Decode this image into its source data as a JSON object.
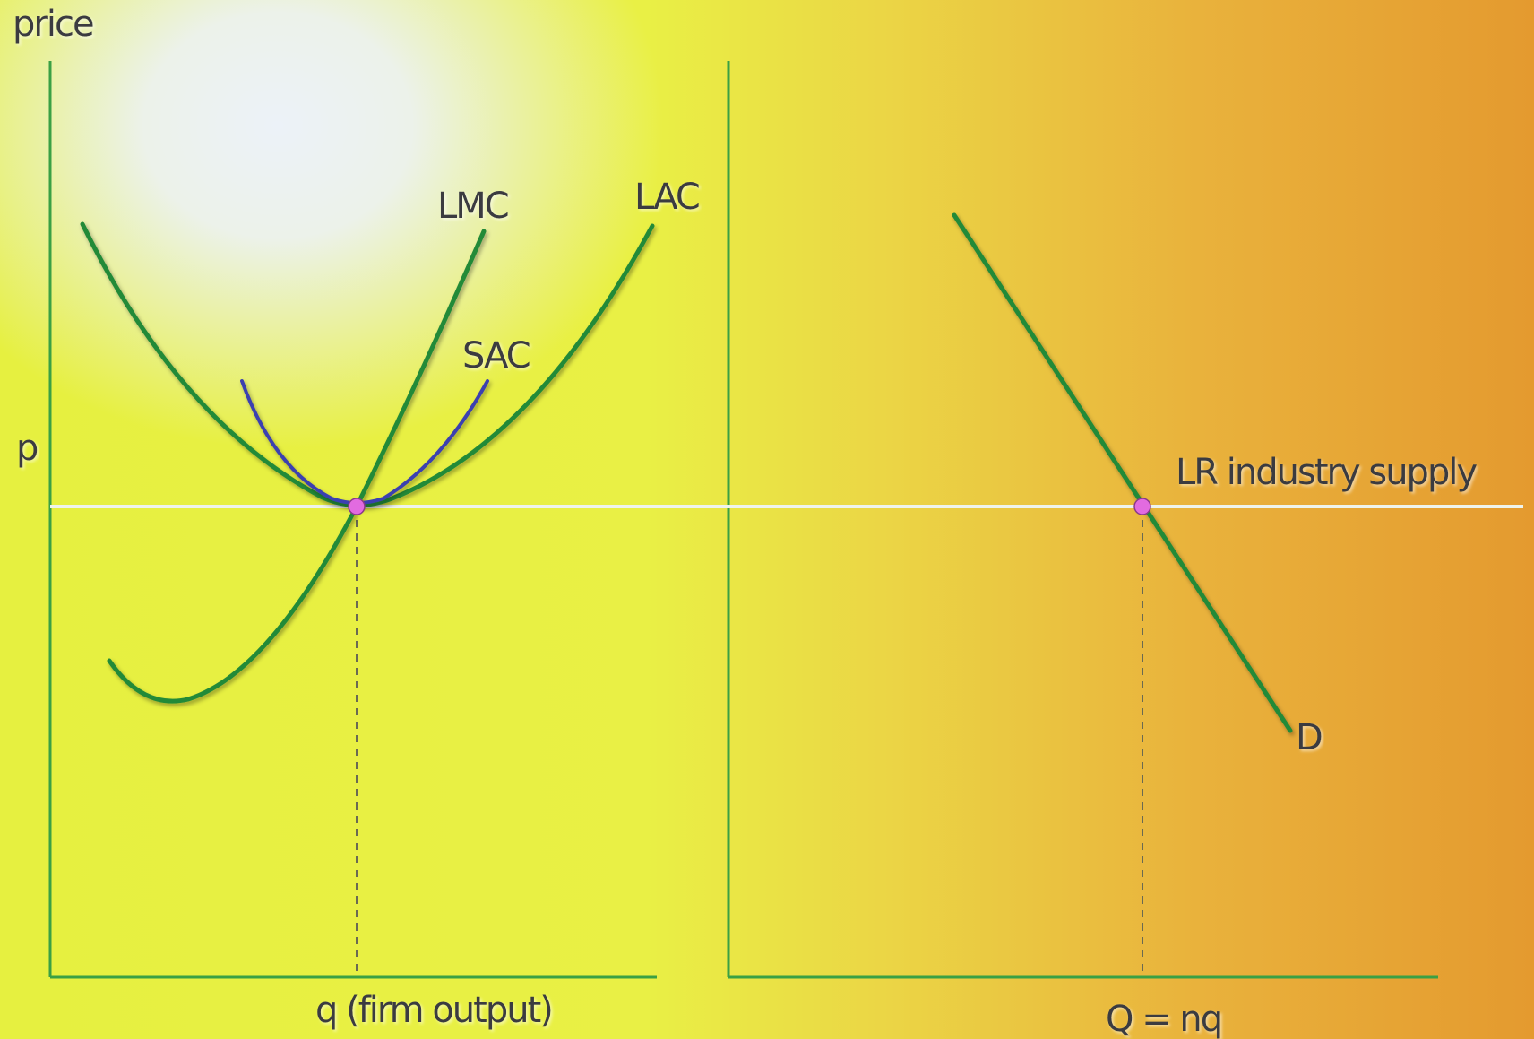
{
  "diagram": {
    "y_axis_label": "price",
    "price_level_label": "p",
    "left_x_axis_label": "q (firm output)",
    "right_x_axis_label": "Q = nq",
    "curves": {
      "lmc": "LMC",
      "lac": "LAC",
      "sac": "SAC",
      "demand": "D",
      "supply": "LR industry supply"
    },
    "colors": {
      "curve": "#248a37",
      "sac": "#3a3fb0",
      "axis": "#3aa044",
      "supply_line": "#eef3ec",
      "equilibrium_point": "#e26be0"
    }
  }
}
